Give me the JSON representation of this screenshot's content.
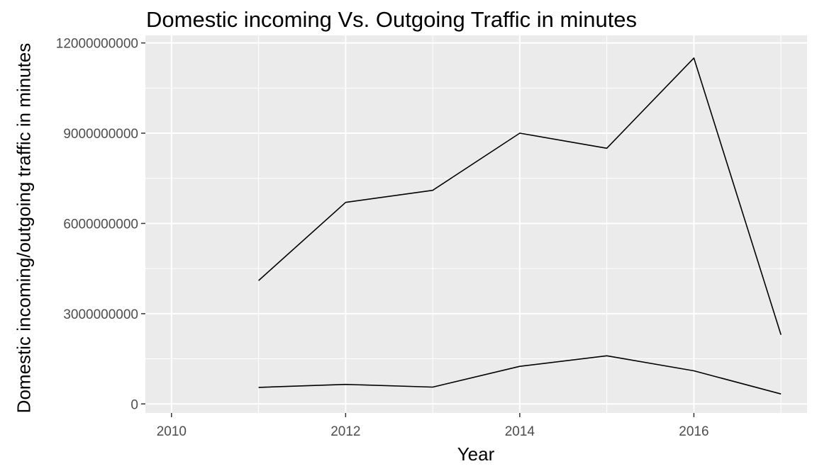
{
  "chart_data": {
    "type": "line",
    "title": "Domestic incoming Vs. Outgoing Traffic in minutes",
    "xlabel": "Year",
    "ylabel": "Domestic incoming/outgoing traffic in minutes",
    "xlim": [
      2009.7,
      2017.3
    ],
    "ylim": [
      -300000000,
      12250000000
    ],
    "x_ticks": [
      2010,
      2012,
      2014,
      2016
    ],
    "x_minor_ticks": [
      2011,
      2013,
      2015,
      2017
    ],
    "y_ticks": [
      0,
      3000000000,
      6000000000,
      9000000000,
      12000000000
    ],
    "y_minor_ticks": [
      1500000000,
      4500000000,
      7500000000,
      10500000000
    ],
    "grid": true,
    "line_color": "#000000",
    "panel_color": "#ebebeb",
    "grid_color": "#ffffff",
    "series": [
      {
        "x": [
          2011,
          2012,
          2013,
          2014,
          2015,
          2016,
          2017
        ],
        "values": [
          4100000000,
          6700000000,
          7100000000,
          9000000000,
          8500000000,
          11500000000,
          2300000000
        ]
      },
      {
        "x": [
          2011,
          2012,
          2013,
          2014,
          2015,
          2016,
          2017
        ],
        "values": [
          550000000,
          650000000,
          560000000,
          1250000000,
          1600000000,
          1100000000,
          330000000
        ]
      }
    ]
  }
}
